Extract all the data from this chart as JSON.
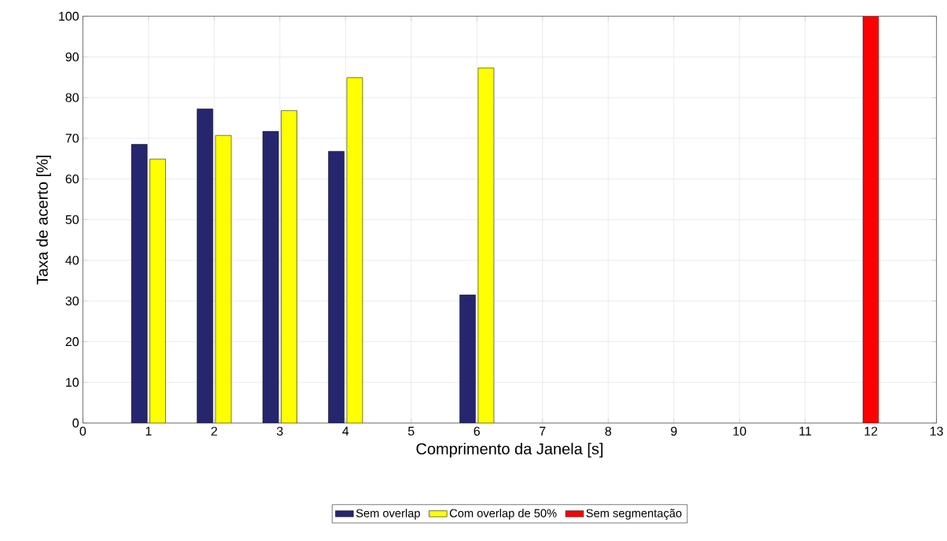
{
  "chart_data": {
    "type": "bar",
    "xlabel": "Comprimento da Janela [s]",
    "ylabel": "Taxa de acerto [%]",
    "series": [
      {
        "name": "Sem overlap",
        "color": "#26266f",
        "x": [
          1,
          2,
          3,
          4,
          6
        ],
        "values": [
          68.5,
          77.2,
          71.7,
          66.8,
          31.5
        ]
      },
      {
        "name": "Com overlap de 50%",
        "color": "#ffff00",
        "x": [
          1,
          2,
          3,
          4,
          6
        ],
        "values": [
          64.9,
          70.7,
          76.8,
          84.9,
          87.3
        ]
      },
      {
        "name": "Sem segmentação",
        "color": "#ff0000",
        "x": [
          12
        ],
        "values": [
          100
        ]
      }
    ],
    "xlim": [
      0,
      13
    ],
    "xticks": [
      0,
      1,
      2,
      3,
      4,
      5,
      6,
      7,
      8,
      9,
      10,
      11,
      12,
      13
    ],
    "ylim": [
      0,
      100
    ],
    "yticks": [
      0,
      10,
      20,
      30,
      40,
      50,
      60,
      70,
      80,
      90,
      100
    ],
    "grid": true,
    "legend": "bottom"
  }
}
